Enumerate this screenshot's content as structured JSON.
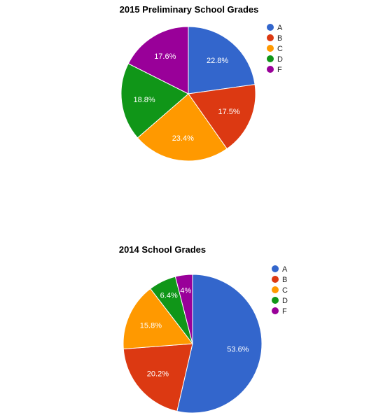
{
  "colors": {
    "A": "#3366cc",
    "B": "#dc3912",
    "C": "#ff9900",
    "D": "#109618",
    "F": "#990099"
  },
  "chart_data": [
    {
      "type": "pie",
      "title": "2015 Preliminary School Grades",
      "labels": [
        "A",
        "B",
        "C",
        "D",
        "F"
      ],
      "values": [
        22.8,
        17.5,
        23.4,
        18.8,
        17.6
      ],
      "value_labels": [
        "22.8%",
        "17.5%",
        "23.4%",
        "18.8%",
        "17.6%"
      ],
      "legend": "right"
    },
    {
      "type": "pie",
      "title": "2014 School Grades",
      "labels": [
        "A",
        "B",
        "C",
        "D",
        "F"
      ],
      "values": [
        53.6,
        20.2,
        15.8,
        6.4,
        4
      ],
      "value_labels": [
        "53.6%",
        "20.2%",
        "15.8%",
        "6.4%",
        "4%"
      ],
      "legend": "right"
    }
  ]
}
